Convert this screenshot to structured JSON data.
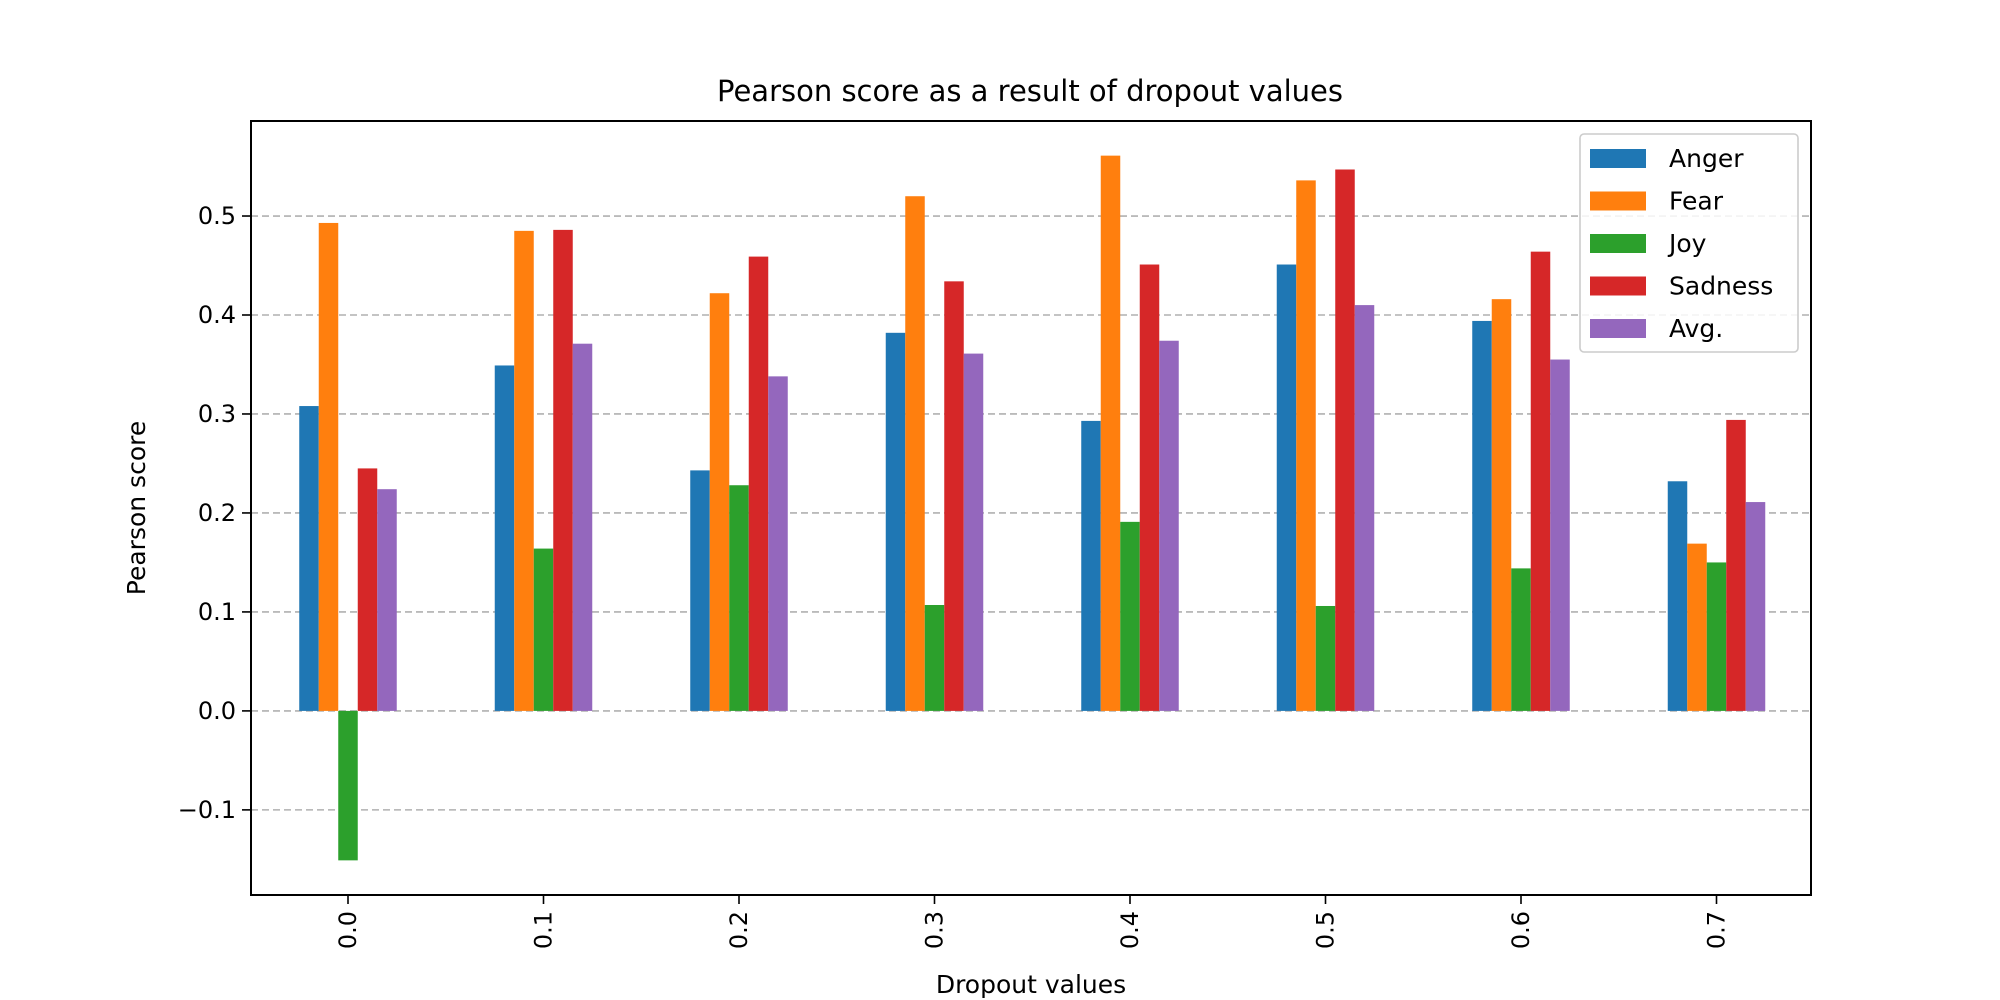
{
  "chart_data": {
    "type": "bar",
    "title": "Pearson score as a result of dropout values",
    "xlabel": "Dropout values",
    "ylabel": "Pearson score",
    "categories": [
      "0.0",
      "0.1",
      "0.2",
      "0.3",
      "0.4",
      "0.5",
      "0.6",
      "0.7"
    ],
    "series": [
      {
        "name": "Anger",
        "color": "#1f77b4",
        "values": [
          0.308,
          0.349,
          0.243,
          0.382,
          0.293,
          0.451,
          0.394,
          0.232
        ]
      },
      {
        "name": "Fear",
        "color": "#ff7f0e",
        "values": [
          0.493,
          0.485,
          0.422,
          0.52,
          0.561,
          0.536,
          0.416,
          0.169
        ]
      },
      {
        "name": "Joy",
        "color": "#2ca02c",
        "values": [
          -0.151,
          0.164,
          0.228,
          0.107,
          0.191,
          0.106,
          0.144,
          0.15
        ]
      },
      {
        "name": "Sadness",
        "color": "#d62728",
        "values": [
          0.245,
          0.486,
          0.459,
          0.434,
          0.451,
          0.547,
          0.464,
          0.294
        ]
      },
      {
        "name": "Avg.",
        "color": "#9467bd",
        "values": [
          0.224,
          0.371,
          0.338,
          0.361,
          0.374,
          0.41,
          0.355,
          0.211
        ]
      }
    ],
    "yticks": [
      "−0.1",
      "0.0",
      "0.1",
      "0.2",
      "0.3",
      "0.4",
      "0.5"
    ],
    "ylim": [
      -0.186,
      0.596
    ],
    "grid": "horizontal dashed",
    "legend_position": "top-right"
  }
}
